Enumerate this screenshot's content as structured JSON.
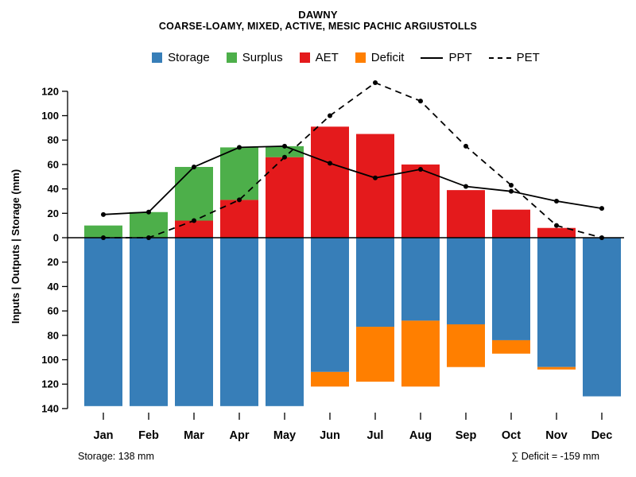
{
  "header": {
    "title": "DAWNY",
    "subtitle": "COARSE-LOAMY, MIXED, ACTIVE, MESIC PACHIC ARGIUSTOLLS"
  },
  "legend": {
    "items": [
      {
        "label": "Storage",
        "type": "swatch",
        "color": "#377EB8"
      },
      {
        "label": "Surplus",
        "type": "swatch",
        "color": "#4DAF4A"
      },
      {
        "label": "AET",
        "type": "swatch",
        "color": "#E41A1C"
      },
      {
        "label": "Deficit",
        "type": "swatch",
        "color": "#FF7F00"
      },
      {
        "label": "PPT",
        "type": "line-solid",
        "color": "#000000"
      },
      {
        "label": "PET",
        "type": "line-dashed",
        "color": "#000000"
      }
    ]
  },
  "chart_data": {
    "type": "bar",
    "title": "DAWNY",
    "subtitle": "COARSE-LOAMY, MIXED, ACTIVE, MESIC PACHIC ARGIUSTOLLS",
    "ylabel": "Inputs | Outputs | Storage  (mm)",
    "units": "mm",
    "categories": [
      "Jan",
      "Feb",
      "Mar",
      "Apr",
      "May",
      "Jun",
      "Jul",
      "Aug",
      "Sep",
      "Oct",
      "Nov",
      "Dec"
    ],
    "y_ticks": [
      120,
      100,
      80,
      60,
      40,
      20,
      0,
      -20,
      -40,
      -60,
      -80,
      -100,
      -120,
      -140
    ],
    "ylim": [
      -140,
      130
    ],
    "grid": false,
    "legend_position": "top",
    "series": [
      {
        "name": "AET",
        "render": "bar",
        "stack": "above-zero",
        "color": "#E41A1C",
        "values": [
          0,
          0,
          14,
          31,
          66,
          91,
          85,
          60,
          39,
          23,
          8,
          0
        ]
      },
      {
        "name": "Surplus",
        "render": "bar",
        "stack": "above-zero",
        "color": "#4DAF4A",
        "values": [
          10,
          21,
          44,
          43,
          9,
          0,
          0,
          0,
          0,
          0,
          0,
          0
        ]
      },
      {
        "name": "Storage",
        "render": "bar",
        "stack": "below-zero",
        "color": "#377EB8",
        "values": [
          138,
          138,
          138,
          138,
          138,
          110,
          73,
          68,
          71,
          84,
          106,
          130
        ]
      },
      {
        "name": "Deficit",
        "render": "bar",
        "stack": "below-zero",
        "color": "#FF7F00",
        "values": [
          0,
          0,
          0,
          0,
          0,
          12,
          45,
          54,
          35,
          11,
          2,
          0
        ]
      },
      {
        "name": "PPT",
        "render": "line",
        "style": "solid",
        "color": "#000000",
        "values": [
          19,
          21,
          58,
          74,
          75,
          61,
          49,
          56,
          42,
          38,
          30,
          24
        ]
      },
      {
        "name": "PET",
        "render": "line",
        "style": "dashed",
        "color": "#000000",
        "values": [
          0,
          0,
          14,
          31,
          66,
          100,
          127,
          112,
          75,
          43,
          10,
          0
        ]
      }
    ]
  },
  "footer": {
    "storage_note": "Storage: 138 mm",
    "deficit_note": "∑ Deficit = -159 mm"
  }
}
